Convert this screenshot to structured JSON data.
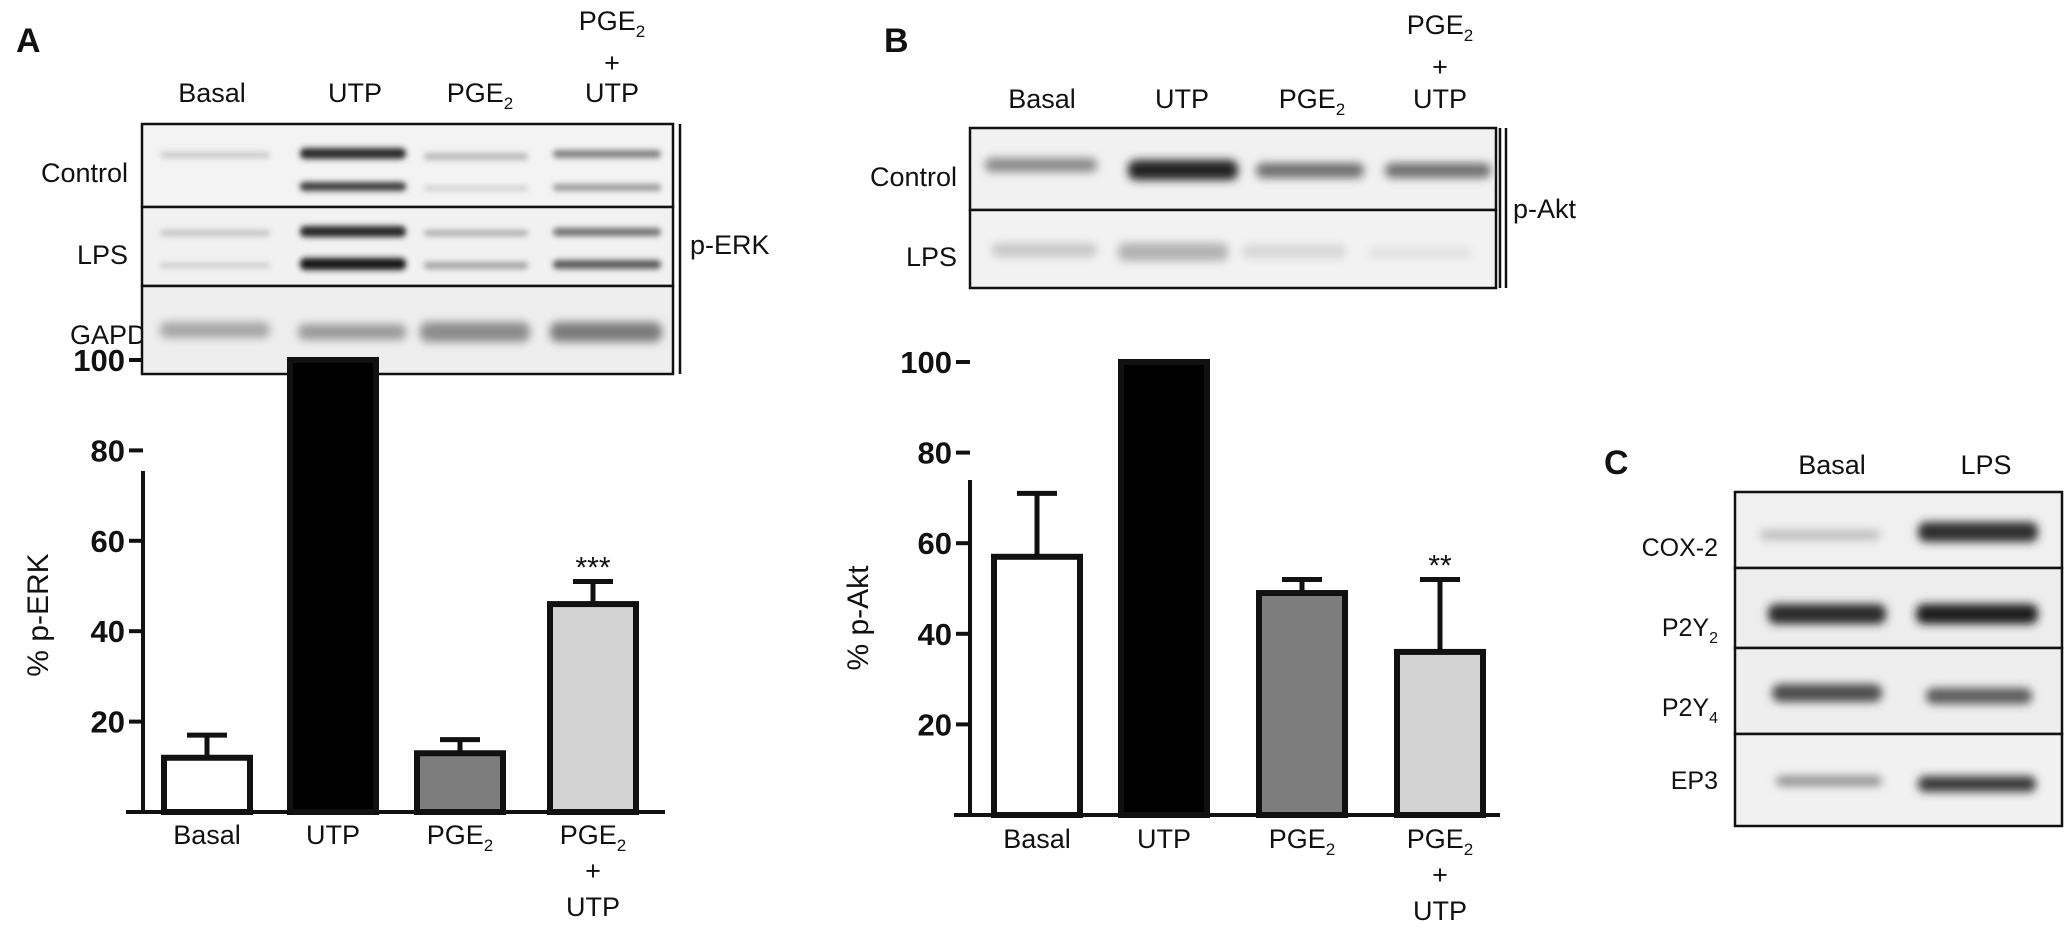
{
  "panels": {
    "A": {
      "label": "A",
      "lanes": [
        "Basal",
        "UTP",
        "PGE2",
        "PGE2+UTP"
      ],
      "rows": [
        "Control",
        "LPS",
        "GAPDH"
      ],
      "bracket_label": "p-ERK"
    },
    "B": {
      "label": "B",
      "lanes": [
        "Basal",
        "UTP",
        "PGE2",
        "PGE2+UTP"
      ],
      "rows": [
        "Control",
        "LPS"
      ],
      "bracket_label": "p-Akt"
    },
    "C": {
      "label": "C",
      "lanes": [
        "Basal",
        "LPS"
      ],
      "rows": [
        "COX-2",
        "P2Y2",
        "P2Y4",
        "EP3"
      ]
    }
  },
  "text": {
    "basal": "Basal",
    "utp": "UTP",
    "pge": "PGE",
    "sub2": "2",
    "sub4": "4",
    "plus": "+",
    "control": "Control",
    "lps": "LPS",
    "gapdh": "GAPDH",
    "perk": "p-ERK",
    "pakt": "p-Akt",
    "cox2": "COX-2",
    "p2y": "P2Y",
    "ep3": "EP3",
    "ylabel_a": "% p-ERK",
    "ylabel_b": "% p-Akt",
    "sig_a": "***",
    "sig_b": "**"
  },
  "colors": {
    "bar_white": "#ffffff",
    "bar_black": "#000000",
    "bar_darkgray": "#7d7d7d",
    "bar_lightgray": "#d3d3d3",
    "band_dark": "#1e1e1e",
    "band_mid": "#5a5a5a",
    "band_light": "#b4b4b4"
  },
  "chart_data": [
    {
      "type": "bar",
      "panel": "A",
      "categories": [
        "Basal",
        "UTP",
        "PGE2",
        "PGE2 + UTP"
      ],
      "values": [
        12,
        100,
        13,
        46
      ],
      "errors": [
        5,
        0,
        3,
        5
      ],
      "bar_colors": [
        "white",
        "black",
        "dark gray",
        "light gray"
      ],
      "ylabel": "% p-ERK",
      "ylim": [
        0,
        100
      ],
      "yticks": [
        20,
        40,
        60,
        80,
        100
      ],
      "annotations": [
        {
          "category": "PGE2 + UTP",
          "text": "***"
        }
      ]
    },
    {
      "type": "bar",
      "panel": "B",
      "categories": [
        "Basal",
        "UTP",
        "PGE2",
        "PGE2 + UTP"
      ],
      "values": [
        57,
        100,
        49,
        36
      ],
      "errors": [
        14,
        0,
        3,
        16
      ],
      "bar_colors": [
        "white",
        "black",
        "dark gray",
        "light gray"
      ],
      "ylabel": "% p-Akt",
      "ylim": [
        0,
        100
      ],
      "yticks": [
        20,
        40,
        60,
        80,
        100
      ],
      "annotations": [
        {
          "category": "PGE2 + UTP",
          "text": "**"
        }
      ]
    }
  ]
}
